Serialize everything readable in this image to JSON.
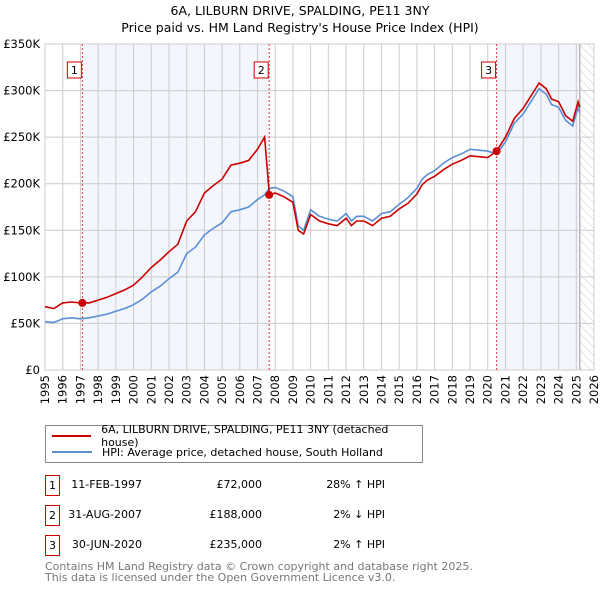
{
  "chart_data": {
    "type": "line",
    "title": "6A, LILBURN DRIVE, SPALDING, PE11 3NY",
    "subtitle": "Price paid vs. HM Land Registry's House Price Index (HPI)",
    "xlabel": "",
    "ylabel": "",
    "xlim": [
      1995,
      2026
    ],
    "ylim": [
      0,
      350000
    ],
    "x_ticks": [
      "1995",
      "1996",
      "1997",
      "1998",
      "1999",
      "2000",
      "2001",
      "2002",
      "2003",
      "2004",
      "2005",
      "2006",
      "2007",
      "2008",
      "2009",
      "2010",
      "2011",
      "2012",
      "2013",
      "2014",
      "2015",
      "2016",
      "2017",
      "2018",
      "2019",
      "2020",
      "2021",
      "2022",
      "2023",
      "2024",
      "2025",
      "2026"
    ],
    "y_ticks": [
      {
        "v": 0,
        "label": "£0"
      },
      {
        "v": 50000,
        "label": "£50K"
      },
      {
        "v": 100000,
        "label": "£100K"
      },
      {
        "v": 150000,
        "label": "£150K"
      },
      {
        "v": 200000,
        "label": "£200K"
      },
      {
        "v": 250000,
        "label": "£250K"
      },
      {
        "v": 300000,
        "label": "£300K"
      },
      {
        "v": 350000,
        "label": "£350K"
      }
    ],
    "grid": true,
    "x": [
      1995,
      1995.5,
      1996,
      1996.5,
      1997,
      1997.5,
      1998,
      1998.5,
      1999,
      1999.5,
      2000,
      2000.5,
      2001,
      2001.5,
      2002,
      2002.5,
      2003,
      2003.5,
      2004,
      2004.5,
      2005,
      2005.5,
      2006,
      2006.5,
      2007,
      2007.4,
      2007.67,
      2008,
      2008.5,
      2009,
      2009.3,
      2009.6,
      2010,
      2010.5,
      2011,
      2011.5,
      2012,
      2012.3,
      2012.6,
      2013,
      2013.5,
      2014,
      2014.5,
      2015,
      2015.5,
      2016,
      2016.3,
      2016.6,
      2017,
      2017.5,
      2018,
      2018.5,
      2019,
      2019.5,
      2020,
      2020.5,
      2021,
      2021.5,
      2022,
      2022.5,
      2022.9,
      2023.3,
      2023.6,
      2024,
      2024.4,
      2024.8,
      2025.1,
      2025.2
    ],
    "series": [
      {
        "name": "6A, LILBURN DRIVE, SPALDING, PE11 3NY (detached house)",
        "color": "#cc0000",
        "values": [
          68,
          66,
          72,
          73,
          72,
          72,
          75,
          78,
          82,
          86,
          91,
          100,
          110,
          118,
          127,
          135,
          160,
          170,
          190,
          198,
          205,
          220,
          222,
          225,
          237,
          250,
          188,
          190,
          186,
          180,
          150,
          146,
          167,
          160,
          157,
          155,
          163,
          155,
          160,
          160,
          155,
          163,
          165,
          173,
          179,
          189,
          199,
          204,
          208,
          215,
          221,
          225,
          230,
          229,
          228,
          235,
          250,
          270,
          281,
          296,
          308,
          302,
          291,
          288,
          273,
          267,
          288,
          282
        ]
      },
      {
        "name": "HPI: Average price, detached house, South Holland",
        "color": "#5b8fd4",
        "values": [
          52,
          51,
          55,
          56,
          55,
          56,
          58,
          60,
          63,
          66,
          70,
          76,
          84,
          90,
          98,
          105,
          125,
          132,
          145,
          152,
          158,
          170,
          172,
          175,
          183,
          188,
          195,
          196,
          192,
          186,
          155,
          150,
          172,
          165,
          162,
          160,
          168,
          160,
          165,
          165,
          160,
          168,
          170,
          178,
          185,
          195,
          205,
          210,
          214,
          222,
          228,
          232,
          237,
          236,
          235,
          232,
          245,
          265,
          275,
          290,
          302,
          296,
          285,
          282,
          268,
          262,
          282,
          276
        ]
      }
    ],
    "value_units": "thousands GBP",
    "sales": [
      {
        "id": "1",
        "x": 1997.11,
        "value": 72000,
        "date": "11-FEB-1997",
        "price": "£72,000",
        "hpi": "28% ↑ HPI"
      },
      {
        "id": "2",
        "x": 2007.66,
        "value": 188000,
        "date": "31-AUG-2007",
        "price": "£188,000",
        "hpi": "2% ↓ HPI"
      },
      {
        "id": "3",
        "x": 2020.5,
        "value": 235000,
        "date": "30-JUN-2020",
        "price": "£235,000",
        "hpi": "2% ↑ HPI"
      }
    ],
    "shaded_ranges": [
      [
        1997.11,
        2007.66
      ],
      [
        2020.5,
        2025.2
      ]
    ],
    "forecast_hatch_from": 2025.2,
    "legend_position": "bottom"
  },
  "title_line1": "6A, LILBURN DRIVE, SPALDING, PE11 3NY",
  "title_line2": "Price paid vs. HM Land Registry's House Price Index (HPI)",
  "legend": {
    "red": "6A, LILBURN DRIVE, SPALDING, PE11 3NY (detached house)",
    "blue": "HPI: Average price, detached house, South Holland"
  },
  "footer": {
    "line1": "Contains HM Land Registry data © Crown copyright and database right 2025.",
    "line2": "This data is licensed under the Open Government Licence v3.0."
  }
}
